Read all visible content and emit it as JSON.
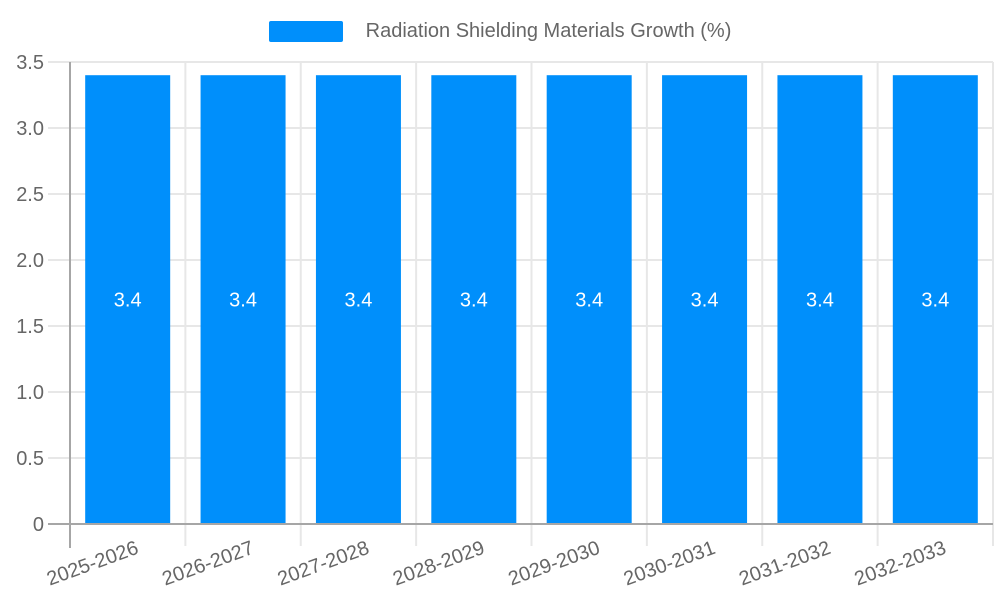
{
  "legend": {
    "items": [
      {
        "label": "Radiation Shielding Materials Growth (%)",
        "color": "#008FFB"
      }
    ]
  },
  "chart_data": {
    "type": "bar",
    "title": "Radiation Shielding Materials Growth (%)",
    "categories": [
      "2025-2026",
      "2026-2027",
      "2027-2028",
      "2028-2029",
      "2029-2030",
      "2030-2031",
      "2031-2032",
      "2032-2033"
    ],
    "series": [
      {
        "name": "Radiation Shielding Materials Growth (%)",
        "values": [
          3.4,
          3.4,
          3.4,
          3.4,
          3.4,
          3.4,
          3.4,
          3.4
        ]
      }
    ],
    "data_labels": [
      "3.4",
      "3.4",
      "3.4",
      "3.4",
      "3.4",
      "3.4",
      "3.4",
      "3.4"
    ],
    "yticks": [
      0,
      0.5,
      1,
      1.5,
      2,
      2.5,
      3,
      3.5
    ],
    "ytick_labels": [
      "0",
      "0.5",
      "1.0",
      "1.5",
      "2.0",
      "2.5",
      "3.0",
      "3.5"
    ],
    "ylim": [
      0,
      3.5
    ],
    "xlabel": "",
    "ylabel": "",
    "grid": true,
    "legend_position": "top",
    "x_label_rotation_deg": -20,
    "colors": {
      "bar": "#008FFB",
      "grid": "#e7e7e7",
      "axis": "#a6a6a6",
      "tick": "#d4d4d4",
      "text": "#666666",
      "data_label": "#ffffff"
    }
  }
}
